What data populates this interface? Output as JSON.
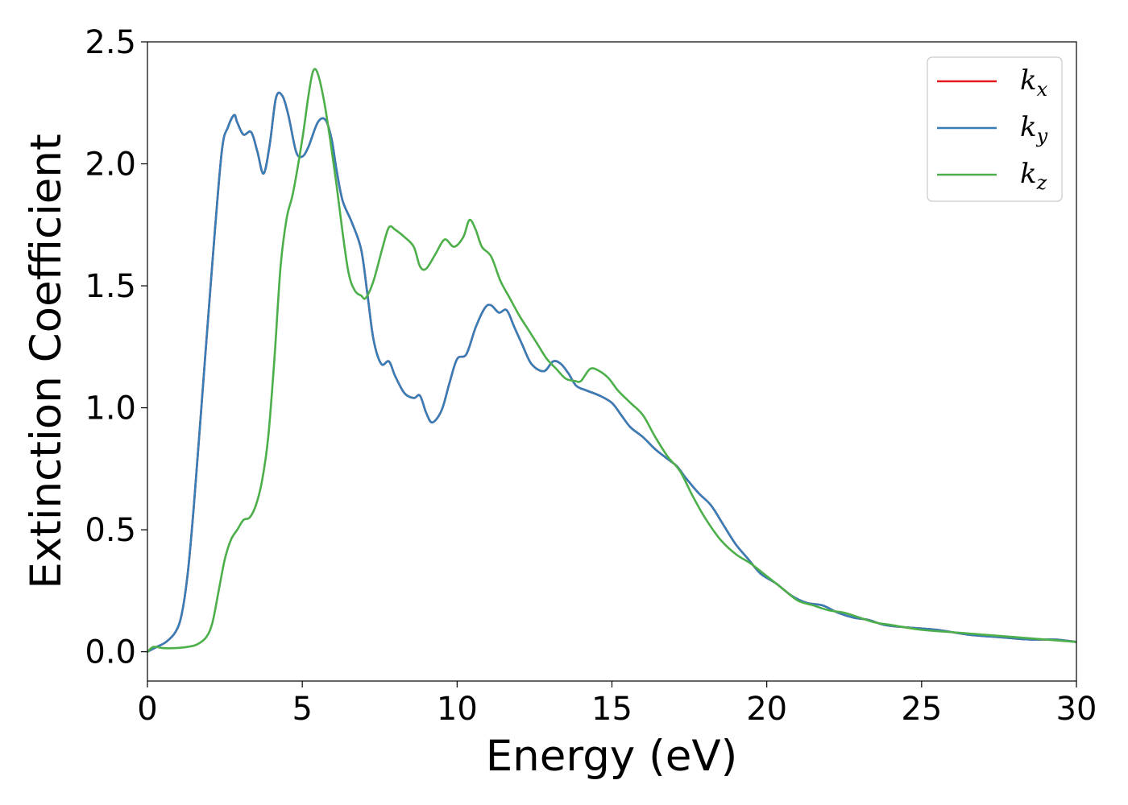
{
  "chart_data": {
    "type": "line",
    "title": "",
    "xlabel": "Energy (eV)",
    "ylabel": "Extinction Coefficient",
    "xlim": [
      0,
      30
    ],
    "ylim": [
      -0.12,
      2.5
    ],
    "xticks": [
      "0",
      "5",
      "10",
      "15",
      "20",
      "25",
      "30"
    ],
    "yticks": [
      "0.0",
      "0.5",
      "1.0",
      "1.5",
      "2.0",
      "2.5"
    ],
    "grid": false,
    "legend_position": "top-right",
    "series": [
      {
        "name": "kx",
        "legend_base": "k",
        "legend_sub": "x",
        "color": "#e41a1c",
        "x": [
          0,
          0.3,
          0.6,
          0.9,
          1.1,
          1.3,
          1.5,
          1.8,
          2.1,
          2.4,
          2.6,
          2.8,
          2.9,
          3.1,
          3.35,
          3.55,
          3.75,
          3.95,
          4.15,
          4.35,
          4.55,
          4.8,
          5.0,
          5.2,
          5.5,
          5.75,
          5.95,
          6.1,
          6.3,
          6.6,
          6.9,
          7.1,
          7.3,
          7.55,
          7.8,
          8.0,
          8.3,
          8.6,
          8.8,
          9.0,
          9.2,
          9.5,
          9.75,
          10.0,
          10.3,
          10.6,
          10.9,
          11.1,
          11.35,
          11.6,
          11.85,
          12.1,
          12.4,
          12.8,
          13.1,
          13.35,
          13.6,
          13.85,
          14.2,
          14.6,
          15.0,
          15.3,
          15.6,
          16.0,
          16.4,
          16.8,
          17.1,
          17.4,
          17.8,
          18.2,
          18.6,
          19.0,
          19.4,
          19.8,
          20.3,
          20.8,
          21.3,
          21.8,
          22.3,
          22.8,
          23.3,
          23.8,
          24.5,
          25.5,
          26.5,
          27.5,
          28.5,
          29.3,
          30.0
        ],
        "values": [
          0.0,
          0.02,
          0.04,
          0.08,
          0.15,
          0.32,
          0.6,
          1.1,
          1.6,
          2.05,
          2.15,
          2.2,
          2.17,
          2.12,
          2.13,
          2.05,
          1.96,
          2.08,
          2.27,
          2.28,
          2.2,
          2.05,
          2.03,
          2.07,
          2.17,
          2.18,
          2.1,
          1.98,
          1.85,
          1.76,
          1.65,
          1.47,
          1.28,
          1.18,
          1.19,
          1.13,
          1.06,
          1.04,
          1.05,
          0.98,
          0.94,
          0.99,
          1.1,
          1.2,
          1.22,
          1.33,
          1.41,
          1.42,
          1.39,
          1.4,
          1.33,
          1.26,
          1.18,
          1.15,
          1.19,
          1.18,
          1.14,
          1.09,
          1.07,
          1.05,
          1.02,
          0.97,
          0.92,
          0.88,
          0.83,
          0.79,
          0.76,
          0.71,
          0.65,
          0.6,
          0.52,
          0.44,
          0.38,
          0.32,
          0.28,
          0.23,
          0.2,
          0.19,
          0.16,
          0.14,
          0.13,
          0.11,
          0.1,
          0.09,
          0.07,
          0.06,
          0.05,
          0.05,
          0.04
        ]
      },
      {
        "name": "ky",
        "legend_base": "k",
        "legend_sub": "y",
        "color": "#377eb8",
        "x": [
          0,
          0.3,
          0.6,
          0.9,
          1.1,
          1.3,
          1.5,
          1.8,
          2.1,
          2.4,
          2.6,
          2.8,
          2.9,
          3.1,
          3.35,
          3.55,
          3.75,
          3.95,
          4.15,
          4.35,
          4.55,
          4.8,
          5.0,
          5.2,
          5.5,
          5.75,
          5.95,
          6.1,
          6.3,
          6.6,
          6.9,
          7.1,
          7.3,
          7.55,
          7.8,
          8.0,
          8.3,
          8.6,
          8.8,
          9.0,
          9.2,
          9.5,
          9.75,
          10.0,
          10.3,
          10.6,
          10.9,
          11.1,
          11.35,
          11.6,
          11.85,
          12.1,
          12.4,
          12.8,
          13.1,
          13.35,
          13.6,
          13.85,
          14.2,
          14.6,
          15.0,
          15.3,
          15.6,
          16.0,
          16.4,
          16.8,
          17.1,
          17.4,
          17.8,
          18.2,
          18.6,
          19.0,
          19.4,
          19.8,
          20.3,
          20.8,
          21.3,
          21.8,
          22.3,
          22.8,
          23.3,
          23.8,
          24.5,
          25.5,
          26.5,
          27.5,
          28.5,
          29.3,
          30.0
        ],
        "values": [
          0.0,
          0.02,
          0.04,
          0.08,
          0.15,
          0.32,
          0.6,
          1.1,
          1.6,
          2.05,
          2.15,
          2.2,
          2.17,
          2.12,
          2.13,
          2.05,
          1.96,
          2.08,
          2.27,
          2.28,
          2.2,
          2.05,
          2.03,
          2.07,
          2.17,
          2.18,
          2.1,
          1.98,
          1.85,
          1.76,
          1.65,
          1.47,
          1.28,
          1.18,
          1.19,
          1.13,
          1.06,
          1.04,
          1.05,
          0.98,
          0.94,
          0.99,
          1.1,
          1.2,
          1.22,
          1.33,
          1.41,
          1.42,
          1.39,
          1.4,
          1.33,
          1.26,
          1.18,
          1.15,
          1.19,
          1.18,
          1.14,
          1.09,
          1.07,
          1.05,
          1.02,
          0.97,
          0.92,
          0.88,
          0.83,
          0.79,
          0.76,
          0.71,
          0.65,
          0.6,
          0.52,
          0.44,
          0.38,
          0.32,
          0.28,
          0.23,
          0.2,
          0.19,
          0.16,
          0.14,
          0.13,
          0.11,
          0.1,
          0.09,
          0.07,
          0.06,
          0.05,
          0.05,
          0.04
        ]
      },
      {
        "name": "kz",
        "legend_base": "k",
        "legend_sub": "z",
        "color": "#4daf4a",
        "x": [
          0,
          0.2,
          0.5,
          0.9,
          1.3,
          1.6,
          1.9,
          2.1,
          2.3,
          2.5,
          2.7,
          2.9,
          3.1,
          3.3,
          3.5,
          3.7,
          3.9,
          4.1,
          4.3,
          4.5,
          4.7,
          5.0,
          5.2,
          5.35,
          5.5,
          5.7,
          5.9,
          6.1,
          6.3,
          6.5,
          6.7,
          6.9,
          7.05,
          7.3,
          7.6,
          7.8,
          8.0,
          8.3,
          8.6,
          8.8,
          9.0,
          9.3,
          9.6,
          9.9,
          10.2,
          10.4,
          10.6,
          10.8,
          11.1,
          11.4,
          11.7,
          12.0,
          12.3,
          12.6,
          12.9,
          13.2,
          13.5,
          13.8,
          14.0,
          14.3,
          14.6,
          14.9,
          15.2,
          15.6,
          16.0,
          16.4,
          16.8,
          17.2,
          17.6,
          18.0,
          18.5,
          19.0,
          19.5,
          20.0,
          20.5,
          21.0,
          21.5,
          22.0,
          22.5,
          23.0,
          23.5,
          24.0,
          25.0,
          26.0,
          27.0,
          28.0,
          29.0,
          30.0
        ],
        "values": [
          0.0,
          0.02,
          0.015,
          0.015,
          0.02,
          0.03,
          0.06,
          0.12,
          0.25,
          0.38,
          0.46,
          0.5,
          0.54,
          0.55,
          0.6,
          0.7,
          0.88,
          1.2,
          1.58,
          1.78,
          1.88,
          2.1,
          2.28,
          2.38,
          2.37,
          2.26,
          2.1,
          1.92,
          1.72,
          1.55,
          1.48,
          1.46,
          1.45,
          1.52,
          1.66,
          1.74,
          1.73,
          1.7,
          1.66,
          1.58,
          1.57,
          1.63,
          1.69,
          1.66,
          1.7,
          1.77,
          1.73,
          1.66,
          1.62,
          1.52,
          1.45,
          1.38,
          1.32,
          1.26,
          1.2,
          1.16,
          1.12,
          1.11,
          1.11,
          1.16,
          1.15,
          1.12,
          1.07,
          1.02,
          0.97,
          0.88,
          0.8,
          0.74,
          0.64,
          0.55,
          0.46,
          0.4,
          0.36,
          0.31,
          0.26,
          0.21,
          0.19,
          0.17,
          0.16,
          0.14,
          0.12,
          0.11,
          0.09,
          0.08,
          0.07,
          0.06,
          0.05,
          0.04
        ]
      }
    ]
  }
}
